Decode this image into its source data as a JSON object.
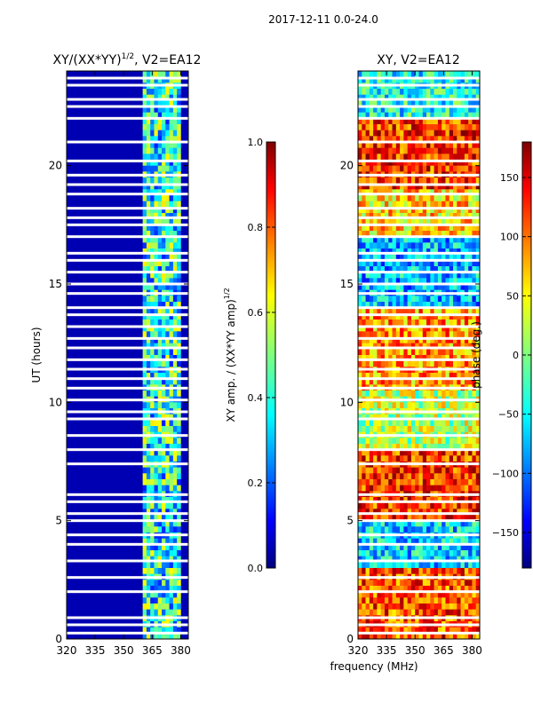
{
  "suptitle": "2017-12-11 0.0-24.0",
  "xlabel": "frequency (MHz)",
  "colors": {
    "bad_flag_row": "#ffffff",
    "axes_frame": "#000000"
  },
  "chart_data": [
    {
      "type": "heatmap",
      "title_main": "XY/(XX*YY)",
      "title_sup": "1/2",
      "title_tail": ", V2=EA12",
      "ylabel": "UT (hours)",
      "xlim": [
        320,
        384
      ],
      "ylim": [
        0,
        24
      ],
      "xticks": [
        320,
        335,
        350,
        365,
        380
      ],
      "yticks": [
        0,
        5,
        10,
        15,
        20
      ],
      "colorbar": {
        "label_main": "XY amp. / (XX*YY amp)",
        "label_sup": "1/2",
        "range": [
          0.0,
          1.0
        ],
        "ticks": [
          "0.0",
          "0.2",
          "0.4",
          "0.6",
          "0.8",
          "1.0"
        ],
        "tick_values": [
          0.0,
          0.2,
          0.4,
          0.6,
          0.8,
          1.0
        ],
        "colormap": "jet"
      },
      "flagged_hours": [
        0.25,
        0.6,
        0.9,
        2.0,
        2.6,
        3.3,
        4.0,
        4.4,
        5.0,
        5.3,
        5.8,
        6.1,
        7.4,
        8.0,
        8.6,
        9.3,
        9.6,
        10.1,
        10.6,
        11.0,
        11.4,
        11.8,
        12.3,
        12.7,
        13.2,
        13.7,
        14.0,
        14.6,
        15.0,
        15.5,
        16.0,
        16.3,
        17.0,
        17.5,
        17.8,
        18.2,
        18.8,
        19.2,
        19.6,
        20.2,
        21.0,
        22.0,
        22.5,
        22.8,
        23.4,
        23.7
      ],
      "signal_band_mhz": [
        361,
        379
      ],
      "description_levels": {
        "background": 0.05,
        "band_mean": 0.35,
        "band_peak": 0.75
      }
    },
    {
      "type": "heatmap",
      "title_main": "XY, V2=EA12",
      "title_sup": "",
      "title_tail": "",
      "ylabel": "",
      "xlim": [
        320,
        384
      ],
      "ylim": [
        0,
        24
      ],
      "xticks": [
        320,
        335,
        350,
        365,
        380
      ],
      "yticks": [
        0,
        5,
        10,
        15,
        20
      ],
      "colorbar": {
        "label_main": "phase (deg.)",
        "label_sup": "",
        "range": [
          -180,
          180
        ],
        "ticks": [
          "−150",
          "−100",
          "−50",
          "0",
          "50",
          "100",
          "150"
        ],
        "tick_values": [
          -150,
          -100,
          -50,
          0,
          50,
          100,
          150
        ],
        "colormap": "jet"
      },
      "flagged_hours": [
        0.25,
        0.6,
        0.9,
        2.0,
        2.6,
        3.3,
        4.0,
        4.4,
        5.0,
        5.3,
        5.8,
        6.1,
        7.4,
        8.0,
        8.6,
        9.3,
        9.6,
        10.1,
        10.6,
        11.0,
        11.4,
        11.8,
        12.3,
        12.7,
        13.2,
        13.7,
        14.0,
        14.6,
        15.0,
        15.5,
        16.0,
        16.3,
        17.0,
        17.5,
        17.8,
        18.2,
        18.8,
        19.2,
        19.6,
        20.2,
        21.0,
        22.0,
        22.5,
        22.8,
        23.4,
        23.7
      ],
      "phase_segments": [
        {
          "from_hour": 0,
          "to_hour": 3,
          "phase_deg": 110
        },
        {
          "from_hour": 3,
          "to_hour": 5,
          "phase_deg": -60
        },
        {
          "from_hour": 5,
          "to_hour": 8,
          "phase_deg": 120
        },
        {
          "from_hour": 8,
          "to_hour": 10.5,
          "phase_deg": 20
        },
        {
          "from_hour": 10.5,
          "to_hour": 14,
          "phase_deg": 80
        },
        {
          "from_hour": 14,
          "to_hour": 17,
          "phase_deg": -70
        },
        {
          "from_hour": 17,
          "to_hour": 19,
          "phase_deg": 60
        },
        {
          "from_hour": 19,
          "to_hour": 22,
          "phase_deg": 120
        },
        {
          "from_hour": 22,
          "to_hour": 24,
          "phase_deg": -40
        }
      ]
    }
  ]
}
